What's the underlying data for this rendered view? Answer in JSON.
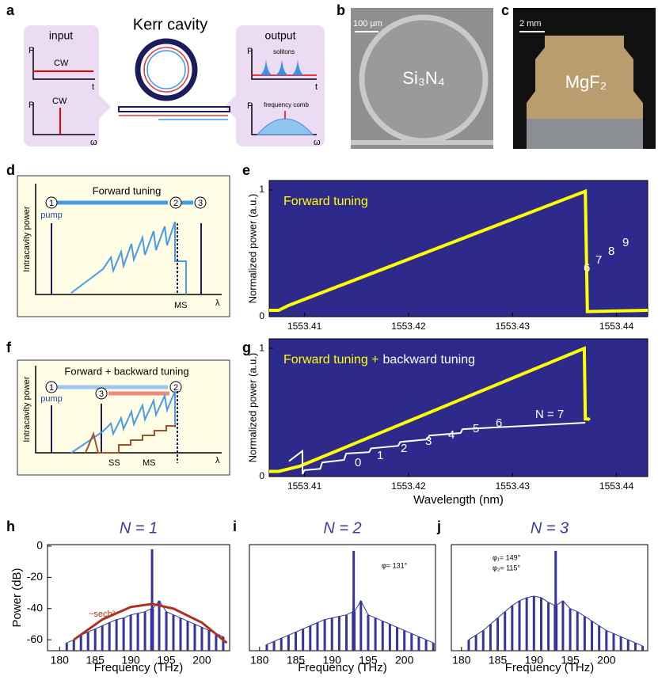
{
  "panel_labels": [
    "a",
    "b",
    "c",
    "d",
    "e",
    "f",
    "g",
    "h",
    "i",
    "j"
  ],
  "a": {
    "title": "Kerr cavity",
    "input": "input",
    "output": "output",
    "p": "P",
    "t": "t",
    "omega": "ω",
    "cw": "CW",
    "solitons": "solitons",
    "comb": "frequency comb"
  },
  "b": {
    "scale": "100 µm",
    "material": "Si₃N₄"
  },
  "c": {
    "scale": "2 mm",
    "material": "MgF₂"
  },
  "d": {
    "title": "Forward tuning",
    "ylabel": "Intracavity power",
    "xlabel": "λ",
    "pump": "pump",
    "states": [
      "1",
      "2",
      "3"
    ],
    "ms": "MS"
  },
  "f": {
    "title": "Forward + backward tuning",
    "ylabel": "Intracavity power",
    "xlabel": "λ",
    "pump": "pump",
    "states": [
      "1",
      "2",
      "3"
    ],
    "ss": "SS",
    "ms": "MS"
  },
  "chart_data": [
    {
      "type": "line",
      "title": "Forward tuning",
      "ylabel": "Normalized  power (a.u.)",
      "xlim": [
        1553.4066,
        1553.443
      ],
      "ylim": [
        0,
        1.075
      ],
      "xticks": [
        1553.41,
        1553.42,
        1553.43,
        1553.44
      ],
      "yticks": [
        0,
        1
      ],
      "series": [
        {
          "color": "#ffff00",
          "x": [
            1553.4066,
            1553.4075,
            1553.4085,
            1553.437,
            1553.4372,
            1553.443
          ],
          "values": [
            0.05,
            0.05,
            0.09,
            0.99,
            0.04,
            0.05
          ]
        }
      ],
      "annotations": [
        "6",
        "7",
        "8",
        "9"
      ]
    },
    {
      "type": "line",
      "title": "Forward tuning +",
      "subtitle": "backward tuning",
      "ylabel": "Normalized  power (a.u.)",
      "xlabel": "Wavelength (nm)",
      "xlim": [
        1553.4066,
        1553.443
      ],
      "ylim": [
        0,
        1.075
      ],
      "xticks": [
        1553.41,
        1553.42,
        1553.43,
        1553.44
      ],
      "yticks": [
        0,
        1
      ],
      "series": [
        {
          "color": "#ffff00",
          "x": [
            1553.4066,
            1553.4075,
            1553.4095,
            1553.4369,
            1553.437,
            1553.4373,
            1553.4374
          ],
          "values": [
            0.04,
            0.04,
            0.08,
            1.0,
            0.45,
            0.45,
            0.44
          ]
        },
        {
          "color": "#ffffff",
          "x": [
            1553.4085,
            1553.4098,
            1553.4098,
            1553.41,
            1553.4115,
            1553.4117,
            1553.4138,
            1553.414,
            1553.4162,
            1553.4164,
            1553.419,
            1553.4192,
            1553.4218,
            1553.422,
            1553.425,
            1553.4252,
            1553.437
          ],
          "values": [
            0.12,
            0.2,
            0.02,
            0.05,
            0.06,
            0.11,
            0.13,
            0.18,
            0.19,
            0.22,
            0.24,
            0.27,
            0.29,
            0.32,
            0.34,
            0.37,
            0.42
          ]
        }
      ],
      "annotations": [
        "0",
        "1",
        "2",
        "3",
        "4",
        "5",
        "6",
        "N = 7"
      ]
    },
    {
      "type": "spectrum",
      "title": "N = 1",
      "ylabel": "Power (dB)",
      "xlabel": "Frequency (THz)",
      "xlim": [
        178.3,
        203.9
      ],
      "ylim": [
        -67,
        1
      ],
      "xticks": [
        180,
        185,
        190,
        195,
        200
      ],
      "yticks": [
        0,
        -20,
        -40,
        -60
      ],
      "series": [
        {
          "color": "#34349c",
          "x": [
            181,
            182,
            183,
            184,
            185,
            186,
            187,
            188,
            189,
            190,
            191,
            192,
            192.9,
            193,
            193.1,
            194,
            195,
            196,
            197,
            198,
            199,
            200,
            201,
            202,
            203
          ],
          "values": [
            -62,
            -60,
            -57,
            -55,
            -53,
            -51,
            -49,
            -47,
            -46,
            -44,
            -43,
            -42,
            -40,
            -2,
            -40,
            -35,
            -42,
            -44,
            -46,
            -48,
            -50,
            -52,
            -54,
            -56,
            -58
          ]
        },
        {
          "color": "#b0301e",
          "x": [
            182,
            186,
            190,
            193,
            196,
            200,
            203.5
          ],
          "values": [
            -60,
            -47,
            -39,
            -37,
            -40,
            -49,
            -62
          ]
        }
      ],
      "annotations": [
        "~sech²"
      ]
    },
    {
      "type": "spectrum",
      "title": "N = 2",
      "xlabel": "Frequency (THz)",
      "xlim": [
        178.6,
        204.3
      ],
      "ylim": [
        -67,
        1
      ],
      "xticks": [
        180,
        185,
        190,
        195,
        200
      ],
      "series": [
        {
          "color": "#34349c",
          "x": [
            181,
            182,
            183,
            184,
            185,
            186,
            187,
            188,
            189,
            190,
            191,
            192,
            192.9,
            193,
            193.1,
            194,
            195,
            196,
            197,
            198,
            199,
            200,
            201,
            202,
            203,
            204
          ],
          "values": [
            -63,
            -61,
            -59,
            -57,
            -55,
            -53,
            -51,
            -49,
            -47,
            -46,
            -45,
            -44,
            -42,
            -3,
            -42,
            -35,
            -44,
            -46,
            -48,
            -50,
            -52,
            -54,
            -56,
            -58,
            -60,
            -62
          ]
        }
      ],
      "annotations": [
        "φ= 131°"
      ]
    },
    {
      "type": "spectrum",
      "title": "N = 3",
      "xlabel": "Frequency (THz)",
      "xlim": [
        178.6,
        205.7
      ],
      "ylim": [
        -67,
        1
      ],
      "xticks": [
        180,
        185,
        190,
        195,
        200
      ],
      "series": [
        {
          "color": "#34349c",
          "x": [
            181,
            182,
            183,
            184,
            185,
            186,
            187,
            188,
            189,
            190,
            191,
            192,
            192.9,
            193,
            193.1,
            194,
            195,
            196,
            197,
            198,
            199,
            200,
            201,
            202,
            203,
            204,
            205
          ],
          "values": [
            -60,
            -57,
            -54,
            -50,
            -46,
            -42,
            -38,
            -35,
            -33,
            -32,
            -33,
            -36,
            -38,
            -3,
            -38,
            -35,
            -40,
            -42,
            -45,
            -48,
            -51,
            -54,
            -56,
            -58,
            -60,
            -62,
            -64
          ]
        }
      ],
      "annotations": [
        "φ₁= 149°",
        "φ₂= 115°"
      ]
    }
  ]
}
